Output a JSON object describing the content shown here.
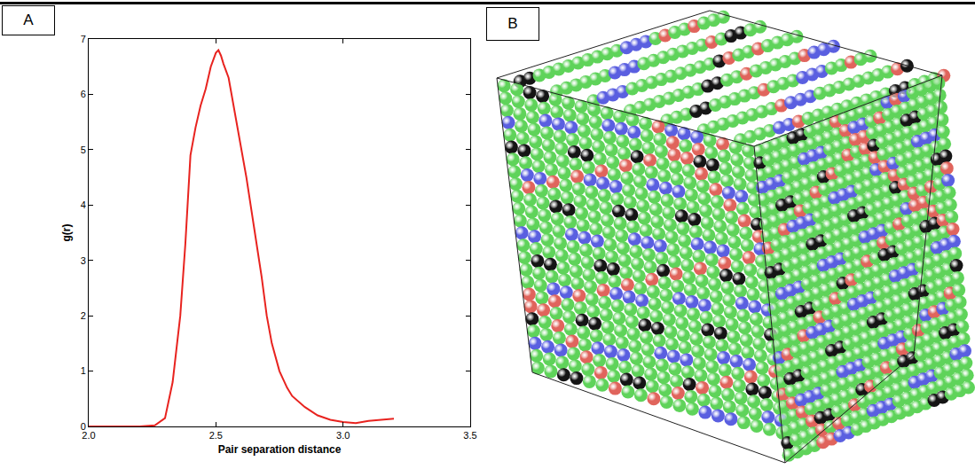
{
  "panel_labels": [
    "A",
    "B"
  ],
  "chart_data": {
    "type": "line",
    "x_label": "Pair separation distance",
    "y_label": "g(r)",
    "x": [
      2.0,
      2.1,
      2.2,
      2.26,
      2.3,
      2.33,
      2.36,
      2.38,
      2.4,
      2.42,
      2.44,
      2.46,
      2.48,
      2.5,
      2.51,
      2.52,
      2.53,
      2.55,
      2.57,
      2.6,
      2.62,
      2.65,
      2.68,
      2.7,
      2.72,
      2.75,
      2.78,
      2.8,
      2.85,
      2.9,
      2.95,
      3.0,
      3.05,
      3.1,
      3.15,
      3.2
    ],
    "series": [
      {
        "name": "g(r)",
        "color": "#e8231f",
        "values": [
          0,
          0,
          0,
          0.02,
          0.15,
          0.8,
          2.0,
          3.3,
          4.9,
          5.4,
          5.8,
          6.1,
          6.5,
          6.75,
          6.8,
          6.7,
          6.55,
          6.3,
          5.8,
          5.0,
          4.5,
          3.6,
          2.7,
          2.0,
          1.5,
          1.0,
          0.7,
          0.55,
          0.35,
          0.2,
          0.12,
          0.08,
          0.06,
          0.1,
          0.12,
          0.14
        ]
      }
    ],
    "xlim": [
      2.0,
      3.5
    ],
    "xticks": [
      {
        "value": 2.0,
        "label": "2.0"
      },
      {
        "value": 2.5,
        "label": "2.5"
      },
      {
        "value": 3.0,
        "label": "3.0"
      },
      {
        "value": 3.5,
        "label": "3.5"
      }
    ],
    "ylim": [
      0,
      7
    ],
    "yticks": [
      0,
      1,
      2,
      3,
      4,
      5,
      6,
      7
    ],
    "grid": false,
    "line_style": "solid"
  }
}
